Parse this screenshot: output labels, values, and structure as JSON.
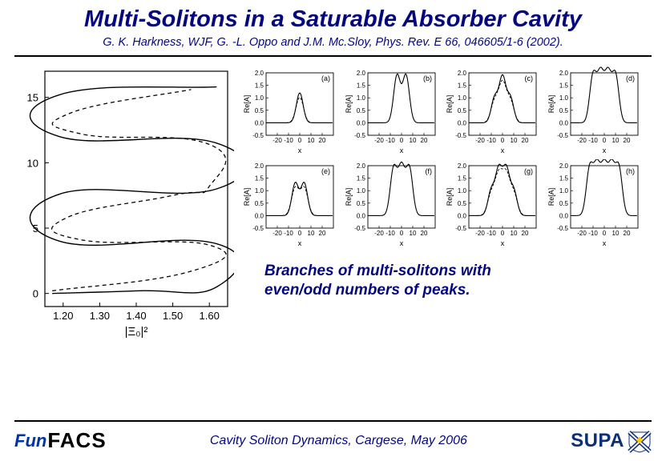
{
  "title": "Multi-Solitons in a Saturable Absorber Cavity",
  "citation": "G. K. Harkness, WJF, G. -L. Oppo and J.M. Mc.Sloy, Phys. Rev. E 66,  046605/1-6 (2002).",
  "caption_line1": "Branches of multi-solitons with",
  "caption_line2": "even/odd numbers of peaks.",
  "footer_text": "Cavity Soliton Dynamics, Cargese, May 2006",
  "logo_left_a": "Fun",
  "logo_left_b": "FACS",
  "logo_right": "SUPA",
  "main_chart": {
    "type": "line",
    "xlabel": "|Ξ₀|²",
    "xlim": [
      1.15,
      1.65
    ],
    "xticks": [
      1.2,
      1.3,
      1.4,
      1.5,
      1.6
    ],
    "ylim": [
      -1,
      17
    ],
    "yticks": [
      0,
      5,
      10,
      15
    ],
    "line_color": "#000000",
    "line_width": 1.4,
    "grid_on": false,
    "font_size_ticks": 13,
    "font_size_xlabel": 15,
    "solid_path": [
      [
        1.17,
        0.0
      ],
      [
        1.4,
        0.2
      ],
      [
        1.62,
        0.5
      ],
      [
        1.62,
        3.8
      ],
      [
        1.19,
        4.0
      ],
      [
        1.19,
        7.6
      ],
      [
        1.62,
        8.0
      ],
      [
        1.62,
        11.5
      ],
      [
        1.19,
        12.0
      ],
      [
        1.19,
        15.2
      ],
      [
        1.62,
        15.8
      ]
    ],
    "dashed_path": [
      [
        1.17,
        0.2
      ],
      [
        1.55,
        1.7
      ],
      [
        1.6,
        3.7
      ],
      [
        1.25,
        4.1
      ],
      [
        1.21,
        5.8
      ],
      [
        1.5,
        7.5
      ],
      [
        1.6,
        8.2
      ],
      [
        1.6,
        11.4
      ],
      [
        1.25,
        12.2
      ],
      [
        1.22,
        13.8
      ],
      [
        1.55,
        15.6
      ]
    ]
  },
  "mini_charts": [
    {
      "label": "(a)",
      "xlabel": "x",
      "ylabel": "Re[A]",
      "xlim": [
        -30,
        30
      ],
      "xticks": [
        -20,
        -10,
        0,
        10,
        20
      ],
      "ylim": [
        -0.5,
        2.0
      ],
      "yticks": [
        -0.5,
        0.0,
        0.5,
        1.0,
        1.5,
        2.0
      ],
      "peaks": [
        {
          "x": 0,
          "h": 1.2,
          "w": 3
        }
      ],
      "dashed": true
    },
    {
      "label": "(b)",
      "xlabel": "x",
      "ylabel": "Re[A]",
      "xlim": [
        -30,
        30
      ],
      "xticks": [
        -20,
        -10,
        0,
        10,
        20
      ],
      "ylim": [
        -0.5,
        2.0
      ],
      "yticks": [
        -0.5,
        0.0,
        0.5,
        1.0,
        1.5,
        2.0
      ],
      "peaks": [
        {
          "x": -4,
          "h": 1.9,
          "w": 3
        },
        {
          "x": 4,
          "h": 1.9,
          "w": 3
        }
      ],
      "dashed": false
    },
    {
      "label": "(c)",
      "xlabel": "x",
      "ylabel": "Re[A]",
      "xlim": [
        -30,
        30
      ],
      "xticks": [
        -20,
        -10,
        0,
        10,
        20
      ],
      "ylim": [
        -0.5,
        2.0
      ],
      "yticks": [
        -0.5,
        0.0,
        0.5,
        1.0,
        1.5,
        2.0
      ],
      "peaks": [
        {
          "x": -7,
          "h": 1.0,
          "w": 3
        },
        {
          "x": 0,
          "h": 1.8,
          "w": 3
        },
        {
          "x": 7,
          "h": 1.0,
          "w": 3
        }
      ],
      "dashed": true
    },
    {
      "label": "(d)",
      "xlabel": "x",
      "ylabel": "Re[A]",
      "xlim": [
        -30,
        30
      ],
      "xticks": [
        -20,
        -10,
        0,
        10,
        20
      ],
      "ylim": [
        -0.5,
        2.0
      ],
      "yticks": [
        -0.5,
        0.0,
        0.5,
        1.0,
        1.5,
        2.0
      ],
      "peaks": [
        {
          "x": -10,
          "h": 1.9,
          "w": 3
        },
        {
          "x": -3.3,
          "h": 1.9,
          "w": 3
        },
        {
          "x": 3.3,
          "h": 1.9,
          "w": 3
        },
        {
          "x": 10,
          "h": 1.9,
          "w": 3
        }
      ],
      "dashed": false
    },
    {
      "label": "(e)",
      "xlabel": "x",
      "ylabel": "Re[A]",
      "xlim": [
        -30,
        30
      ],
      "xticks": [
        -20,
        -10,
        0,
        10,
        20
      ],
      "ylim": [
        -0.5,
        2.0
      ],
      "yticks": [
        -0.5,
        0.0,
        0.5,
        1.0,
        1.5,
        2.0
      ],
      "peaks": [
        {
          "x": -4,
          "h": 1.3,
          "w": 3
        },
        {
          "x": 4,
          "h": 1.3,
          "w": 3
        }
      ],
      "dashed": true
    },
    {
      "label": "(f)",
      "xlabel": "x",
      "ylabel": "Re[A]",
      "xlim": [
        -30,
        30
      ],
      "xticks": [
        -20,
        -10,
        0,
        10,
        20
      ],
      "ylim": [
        -0.5,
        2.0
      ],
      "yticks": [
        -0.5,
        0.0,
        0.5,
        1.0,
        1.5,
        2.0
      ],
      "peaks": [
        {
          "x": -7,
          "h": 1.9,
          "w": 3
        },
        {
          "x": 0,
          "h": 1.9,
          "w": 3
        },
        {
          "x": 7,
          "h": 1.9,
          "w": 3
        }
      ],
      "dashed": false
    },
    {
      "label": "(g)",
      "xlabel": "x",
      "ylabel": "Re[A]",
      "xlim": [
        -30,
        30
      ],
      "xticks": [
        -20,
        -10,
        0,
        10,
        20
      ],
      "ylim": [
        -0.5,
        2.0
      ],
      "yticks": [
        -0.5,
        0.0,
        0.5,
        1.0,
        1.5,
        2.0
      ],
      "peaks": [
        {
          "x": -10,
          "h": 1.0,
          "w": 3
        },
        {
          "x": -3.3,
          "h": 1.8,
          "w": 3
        },
        {
          "x": 3.3,
          "h": 1.8,
          "w": 3
        },
        {
          "x": 10,
          "h": 1.0,
          "w": 3
        }
      ],
      "dashed": true
    },
    {
      "label": "(h)",
      "xlabel": "x",
      "ylabel": "Re[A]",
      "xlim": [
        -30,
        30
      ],
      "xticks": [
        -20,
        -10,
        0,
        10,
        20
      ],
      "ylim": [
        -0.5,
        2.0
      ],
      "yticks": [
        -0.5,
        0.0,
        0.5,
        1.0,
        1.5,
        2.0
      ],
      "peaks": [
        {
          "x": -13,
          "h": 1.9,
          "w": 3
        },
        {
          "x": -6.5,
          "h": 1.9,
          "w": 3
        },
        {
          "x": 0,
          "h": 1.9,
          "w": 3
        },
        {
          "x": 6.5,
          "h": 1.9,
          "w": 3
        },
        {
          "x": 13,
          "h": 1.9,
          "w": 3
        }
      ],
      "dashed": false
    }
  ],
  "colors": {
    "text_primary": "#04067e",
    "line": "#000000",
    "background": "#ffffff"
  }
}
